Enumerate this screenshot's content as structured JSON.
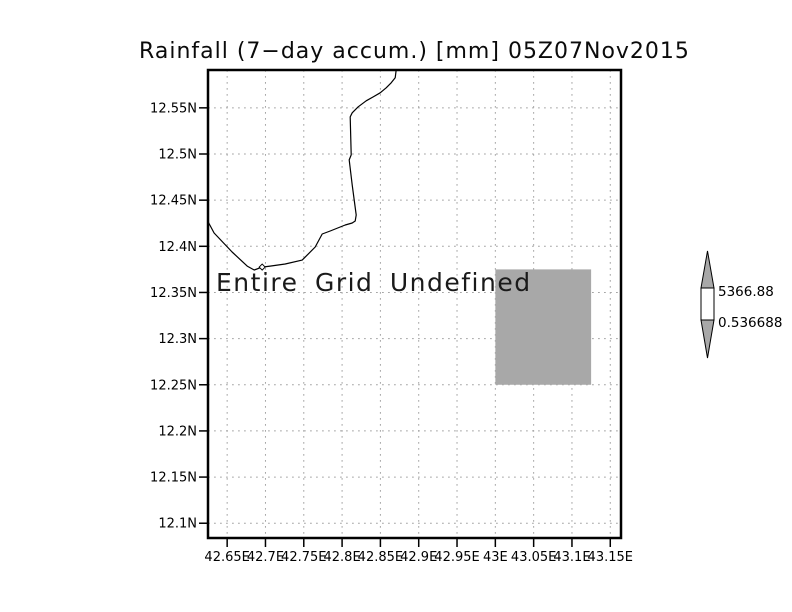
{
  "page": {
    "background": "#ffffff"
  },
  "chart_data": {
    "type": "map",
    "title": "Rainfall (7−day accum.) [mm] 05Z07Nov2015",
    "annotation": "Entire Grid Undefined",
    "units": "mm",
    "x_axis": {
      "min": 42.625,
      "max": 43.164,
      "values": [
        42.65,
        42.7,
        42.75,
        42.8,
        42.85,
        42.9,
        42.95,
        43.0,
        43.05,
        43.1,
        43.15
      ],
      "labels": [
        "42.65E",
        "42.7E",
        "42.75E",
        "42.8E",
        "42.85E",
        "42.9E",
        "42.95E",
        "43E",
        "43.05E",
        "43.1E",
        "43.15E"
      ]
    },
    "y_axis": {
      "min": 12.084,
      "max": 12.591,
      "values": [
        12.55,
        12.5,
        12.45,
        12.4,
        12.35,
        12.3,
        12.25,
        12.2,
        12.15,
        12.1
      ],
      "labels": [
        "12.55N",
        "12.5N",
        "12.45N",
        "12.4N",
        "12.35N",
        "12.3N",
        "12.25N",
        "12.2N",
        "12.15N",
        "12.1N"
      ]
    },
    "grid": {
      "visible": true,
      "style": "dotted",
      "color": "#a6a6a6"
    },
    "frame_color": "#000000",
    "undefined_region": {
      "lon_min": 43.0,
      "lon_max": 43.125,
      "lat_min": 12.25,
      "lat_max": 12.375,
      "fill": "#a8a8a8"
    },
    "coastline": {
      "color": "#000000",
      "points": [
        [
          42.8706,
          12.5912
        ],
        [
          42.8693,
          12.5825
        ],
        [
          42.8641,
          12.5771
        ],
        [
          42.8576,
          12.5717
        ],
        [
          42.8497,
          12.5663
        ],
        [
          42.8406,
          12.5619
        ],
        [
          42.8315,
          12.5576
        ],
        [
          42.821,
          12.5511
        ],
        [
          42.8132,
          12.5446
        ],
        [
          42.8106,
          12.5402
        ],
        [
          42.8119,
          12.499
        ],
        [
          42.8093,
          12.4936
        ],
        [
          42.8132,
          12.4665
        ],
        [
          42.8158,
          12.4502
        ],
        [
          42.8184,
          12.4339
        ],
        [
          42.8171,
          12.4274
        ],
        [
          42.8132,
          12.4253
        ],
        [
          42.804,
          12.4231
        ],
        [
          42.7845,
          12.4166
        ],
        [
          42.774,
          12.4133
        ],
        [
          42.7649,
          12.3992
        ],
        [
          42.7479,
          12.3851
        ],
        [
          42.7257,
          12.3808
        ],
        [
          42.7061,
          12.3786
        ],
        [
          42.6957,
          12.3775
        ],
        [
          42.6853,
          12.3743
        ],
        [
          42.6761,
          12.3786
        ],
        [
          42.6565,
          12.3938
        ],
        [
          42.633,
          12.4144
        ],
        [
          42.6252,
          12.4263
        ]
      ],
      "marker": [
        42.6957,
        12.3775
      ]
    },
    "colorbar": {
      "max_label": "5366.88",
      "min_label": "0.536688",
      "arrow_fill": "#a8a8a8",
      "box_fill": "#ffffff",
      "outline": "#000000"
    }
  }
}
